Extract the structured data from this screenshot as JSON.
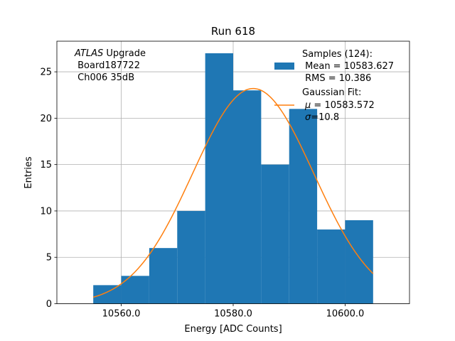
{
  "chart_data": {
    "type": "bar",
    "title": "Run 618",
    "xlabel": "Energy [ADC Counts]",
    "ylabel": "Entries",
    "xlim": [
      10548.5,
      10611.5
    ],
    "ylim": [
      0,
      28.3
    ],
    "xticks": [
      10560,
      10580,
      10600
    ],
    "xtick_labels": [
      "10560.0",
      "10580.0",
      "10600.0"
    ],
    "yticks": [
      0,
      5,
      10,
      15,
      20,
      25
    ],
    "ytick_labels": [
      "0",
      "5",
      "10",
      "15",
      "20",
      "25"
    ],
    "grid": true,
    "histogram": {
      "name": "Samples (124):",
      "color": "#1f77b4",
      "bin_edges": [
        10555,
        10560,
        10565,
        10570,
        10575,
        10580,
        10585,
        10590,
        10595,
        10600,
        10605
      ],
      "counts": [
        2,
        3,
        6,
        10,
        27,
        23,
        15,
        21,
        8,
        9
      ]
    },
    "fit": {
      "name": "Gaussian Fit:",
      "color": "#ff7f0e",
      "mu": 10583.572,
      "sigma": 10.8,
      "amplitude": 23.2,
      "x_range": [
        10555,
        10605
      ]
    },
    "legend": {
      "placement": "top-right",
      "samples_lines": [
        "Samples (124):",
        " Mean = 10583.627",
        " RMS = 10.386"
      ],
      "fit_title": "Gaussian Fit:",
      "fit_mu": " = 10583.572",
      "fit_sigma": "=10.8"
    },
    "annotation": {
      "line1_italic": "ATLAS",
      "line1_rest": " Upgrade",
      "line2": " Board187722",
      "line3": " Ch006 35dB"
    }
  }
}
